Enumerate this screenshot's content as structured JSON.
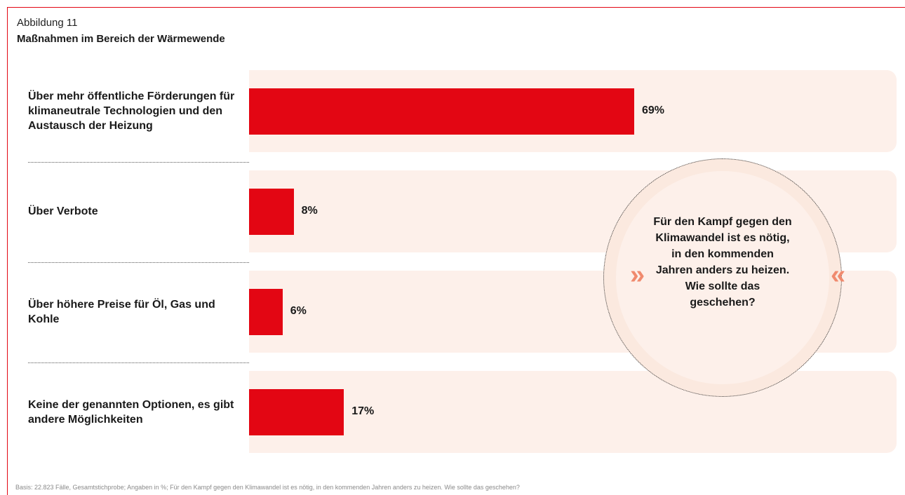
{
  "figure": {
    "label": "Abbildung 11",
    "title": "Maßnahmen im Bereich der Wärmewende"
  },
  "chart_data": {
    "type": "bar",
    "orientation": "horizontal",
    "categories": [
      "Über mehr öffentliche Förderungen für klimaneutrale Technologien und den Austausch der Heizung",
      "Über Verbote",
      "Über höhere Preise für Öl, Gas und Kohle",
      "Keine der genannten Optionen, es gibt andere Möglichkeiten"
    ],
    "values": [
      69,
      8,
      6,
      17
    ],
    "value_labels": [
      "69%",
      "8%",
      "6%",
      "17%"
    ],
    "xlim": [
      0,
      100
    ],
    "bar_color": "#e30613",
    "row_background": "#fdf0ea"
  },
  "callout": {
    "text": "Für den Kampf gegen den Klimawandel ist es nötig, in den kommenden Jahren anders zu heizen. Wie sollte das geschehen?",
    "open_quote": "»",
    "close_quote": "«"
  },
  "footnote": "Basis: 22.823 Fälle, Gesamtstichprobe; Angaben in %; Für den Kampf gegen den Klimawandel ist es nötig, in den kommenden Jahren anders zu heizen. Wie sollte das geschehen?"
}
